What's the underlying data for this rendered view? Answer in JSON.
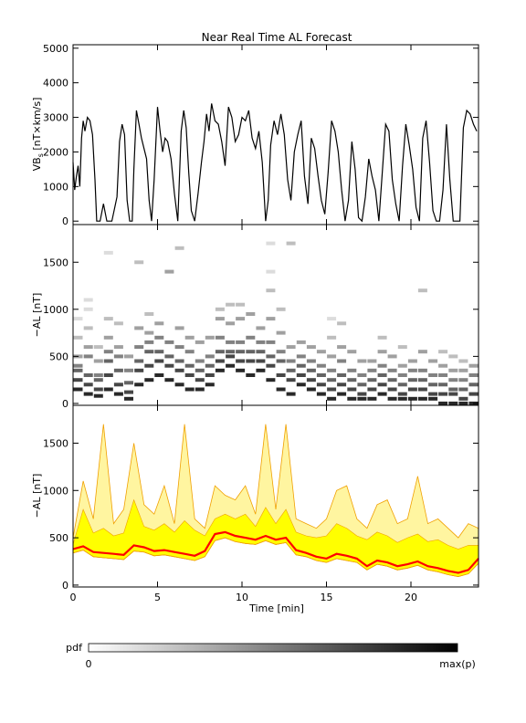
{
  "figure_title": "Near Real Time AL Forecast",
  "colorbar": {
    "label": "pdf",
    "min_label": "0",
    "max_label": "max(p)",
    "colors": [
      "#ffffff",
      "#000000"
    ]
  },
  "colors": {
    "vbs_line": "#000000",
    "band_outer_fill": "#fff5a0",
    "band_inner_fill": "#ffff00",
    "band_edge": "#f0a000",
    "median_line": "#ff0000"
  },
  "chart_data": [
    {
      "type": "line",
      "panel": "top",
      "title": "Near Real Time AL Forecast",
      "xlabel": "",
      "ylabel": "VBs [nT×km/s]",
      "ylabel_main": "VB",
      "ylabel_sub": "s",
      "ylabel_rest": " [nT×km/s]",
      "xlim": [
        0,
        24
      ],
      "ylim": [
        -100,
        5100
      ],
      "yticks": [
        0,
        1000,
        2000,
        3000,
        4000,
        5000
      ],
      "ytick_labels": [
        "0",
        "1000",
        "2000",
        "3000",
        "4000",
        "5000"
      ],
      "grid": false,
      "series": [
        {
          "x": [
            0,
            0.1,
            0.2,
            0.3,
            0.4,
            0.5,
            0.6,
            0.7,
            0.85,
            1.0,
            1.15,
            1.3,
            1.4,
            1.6,
            1.8,
            2.0,
            2.3,
            2.6,
            2.75,
            2.9,
            3.05,
            3.2,
            3.35,
            3.5,
            3.6,
            3.75,
            3.9,
            4.05,
            4.2,
            4.35,
            4.5,
            4.65,
            4.8,
            5.0,
            5.15,
            5.3,
            5.45,
            5.6,
            5.8,
            6.0,
            6.2,
            6.4,
            6.55,
            6.7,
            6.85,
            7.0,
            7.2,
            7.4,
            7.6,
            7.75,
            7.9,
            8.05,
            8.2,
            8.4,
            8.6,
            8.8,
            9.0,
            9.2,
            9.4,
            9.6,
            9.8,
            10.0,
            10.2,
            10.4,
            10.6,
            10.8,
            11.0,
            11.2,
            11.4,
            11.55,
            11.7,
            11.9,
            12.1,
            12.3,
            12.5,
            12.7,
            12.9,
            13.1,
            13.3,
            13.5,
            13.7,
            13.9,
            14.1,
            14.3,
            14.5,
            14.7,
            14.9,
            15.1,
            15.3,
            15.5,
            15.7,
            15.9,
            16.1,
            16.3,
            16.5,
            16.7,
            16.9,
            17.1,
            17.3,
            17.5,
            17.7,
            17.9,
            18.1,
            18.3,
            18.5,
            18.7,
            18.9,
            19.1,
            19.3,
            19.5,
            19.7,
            19.9,
            20.1,
            20.3,
            20.5,
            20.7,
            20.9,
            21.1,
            21.3,
            21.5,
            21.7,
            21.9,
            22.1,
            22.3,
            22.5,
            22.7,
            22.9,
            23.1,
            23.3,
            23.5,
            23.7,
            23.9
          ],
          "y": [
            1700,
            900,
            1300,
            1600,
            1000,
            2400,
            2900,
            2600,
            3000,
            2900,
            2500,
            1200,
            0,
            0,
            500,
            0,
            0,
            700,
            2300,
            2800,
            2500,
            600,
            0,
            0,
            1500,
            3200,
            2800,
            2400,
            2100,
            1800,
            600,
            0,
            1200,
            3300,
            2600,
            2000,
            2400,
            2300,
            1800,
            800,
            0,
            2600,
            3200,
            2700,
            1400,
            300,
            0,
            800,
            1700,
            2300,
            3100,
            2600,
            3400,
            2900,
            2800,
            2300,
            1600,
            3300,
            3000,
            2300,
            2500,
            3000,
            2900,
            3200,
            2400,
            2100,
            2600,
            1700,
            0,
            600,
            2200,
            2900,
            2500,
            3100,
            2500,
            1200,
            600,
            2000,
            2500,
            2900,
            1300,
            500,
            2400,
            2100,
            1300,
            600,
            200,
            1400,
            2900,
            2600,
            2000,
            900,
            0,
            600,
            2300,
            1500,
            100,
            0,
            700,
            1800,
            1300,
            900,
            0,
            1400,
            2800,
            2600,
            1200,
            500,
            0,
            1600,
            2800,
            2200,
            1500,
            400,
            0,
            2400,
            2900,
            1700,
            300,
            0,
            0,
            900,
            2800,
            1200,
            0,
            0,
            0,
            2700,
            3200,
            3100,
            2800,
            2600
          ]
        }
      ]
    },
    {
      "type": "heatmap",
      "panel": "middle",
      "xlabel": "",
      "ylabel": "−AL [nT]",
      "xlim": [
        0,
        24
      ],
      "ylim": [
        -20,
        1900
      ],
      "yticks": [
        0,
        500,
        1000,
        1500
      ],
      "ytick_labels": [
        "0",
        "500",
        "1000",
        "1500"
      ],
      "grid": false,
      "columns": [
        {
          "x": 0.3,
          "values": [
            150,
            250,
            350,
            400,
            500,
            700,
            900
          ]
        },
        {
          "x": 0.9,
          "values": [
            100,
            200,
            300,
            500,
            600,
            800,
            1000,
            1100
          ]
        },
        {
          "x": 1.5,
          "values": [
            80,
            150,
            250,
            300,
            450,
            600
          ]
        },
        {
          "x": 2.1,
          "values": [
            150,
            300,
            450,
            550,
            700,
            900,
            1600
          ]
        },
        {
          "x": 2.7,
          "values": [
            100,
            200,
            350,
            500,
            600,
            850
          ]
        },
        {
          "x": 3.3,
          "values": [
            50,
            120,
            220,
            350,
            500
          ]
        },
        {
          "x": 3.9,
          "values": [
            200,
            350,
            450,
            600,
            800,
            1500
          ]
        },
        {
          "x": 4.5,
          "values": [
            250,
            400,
            550,
            650,
            750,
            950
          ]
        },
        {
          "x": 5.1,
          "values": [
            300,
            450,
            550,
            700,
            850
          ]
        },
        {
          "x": 5.7,
          "values": [
            250,
            400,
            500,
            650,
            1400
          ]
        },
        {
          "x": 6.3,
          "values": [
            200,
            350,
            450,
            600,
            800,
            1650
          ]
        },
        {
          "x": 6.9,
          "values": [
            150,
            300,
            400,
            550,
            700
          ]
        },
        {
          "x": 7.5,
          "values": [
            150,
            250,
            350,
            450,
            650
          ]
        },
        {
          "x": 8.1,
          "values": [
            200,
            300,
            400,
            500,
            700
          ]
        },
        {
          "x": 8.7,
          "values": [
            350,
            450,
            550,
            700,
            900,
            1000
          ]
        },
        {
          "x": 9.3,
          "values": [
            400,
            500,
            550,
            650,
            850,
            1050
          ]
        },
        {
          "x": 9.9,
          "values": [
            350,
            450,
            550,
            650,
            900,
            1050
          ]
        },
        {
          "x": 10.5,
          "values": [
            300,
            450,
            550,
            700,
            950
          ]
        },
        {
          "x": 11.1,
          "values": [
            350,
            450,
            550,
            650,
            800
          ]
        },
        {
          "x": 11.7,
          "values": [
            250,
            400,
            500,
            650,
            900,
            1200,
            1400,
            1700
          ]
        },
        {
          "x": 12.3,
          "values": [
            150,
            300,
            450,
            550,
            750,
            1000
          ]
        },
        {
          "x": 12.9,
          "values": [
            100,
            250,
            350,
            450,
            600,
            1700
          ]
        },
        {
          "x": 13.5,
          "values": [
            200,
            300,
            400,
            500,
            650
          ]
        },
        {
          "x": 14.1,
          "values": [
            150,
            250,
            350,
            450,
            600
          ]
        },
        {
          "x": 14.7,
          "values": [
            100,
            200,
            300,
            400,
            550
          ]
        },
        {
          "x": 15.3,
          "values": [
            50,
            150,
            250,
            350,
            500,
            700,
            900
          ]
        },
        {
          "x": 15.9,
          "values": [
            100,
            200,
            300,
            450,
            600,
            850
          ]
        },
        {
          "x": 16.5,
          "values": [
            50,
            150,
            250,
            350,
            550
          ]
        },
        {
          "x": 17.1,
          "values": [
            50,
            100,
            200,
            300,
            450
          ]
        },
        {
          "x": 17.7,
          "values": [
            50,
            150,
            250,
            350,
            450
          ]
        },
        {
          "x": 18.3,
          "values": [
            100,
            200,
            300,
            400,
            550,
            700
          ]
        },
        {
          "x": 18.9,
          "values": [
            50,
            150,
            250,
            350,
            500
          ]
        },
        {
          "x": 19.5,
          "values": [
            50,
            100,
            200,
            300,
            400,
            600
          ]
        },
        {
          "x": 20.1,
          "values": [
            50,
            150,
            250,
            350,
            450
          ]
        },
        {
          "x": 20.7,
          "values": [
            50,
            150,
            250,
            350,
            550,
            1200
          ]
        },
        {
          "x": 21.3,
          "values": [
            50,
            100,
            200,
            300,
            450
          ]
        },
        {
          "x": 21.9,
          "values": [
            0,
            100,
            200,
            300,
            400,
            550
          ]
        },
        {
          "x": 22.5,
          "values": [
            0,
            100,
            150,
            250,
            350,
            500
          ]
        },
        {
          "x": 23.1,
          "values": [
            0,
            50,
            150,
            250,
            350,
            450
          ]
        },
        {
          "x": 23.7,
          "values": [
            0,
            100,
            200,
            300,
            400
          ]
        }
      ]
    },
    {
      "type": "area",
      "panel": "bottom",
      "xlabel": "Time [min]",
      "ylabel": "−AL [nT]",
      "xlim": [
        0,
        24
      ],
      "ylim": [
        -20,
        1900
      ],
      "xticks": [
        0,
        5,
        10,
        15,
        20
      ],
      "xtick_labels": [
        "0",
        "5",
        "10",
        "15",
        "20"
      ],
      "yticks": [
        0,
        500,
        1000,
        1500
      ],
      "ytick_labels": [
        "0",
        "500",
        "1000",
        "1500"
      ],
      "grid": false,
      "x": [
        0,
        0.6,
        1.2,
        1.8,
        2.4,
        3.0,
        3.6,
        4.2,
        4.8,
        5.4,
        6.0,
        6.6,
        7.2,
        7.8,
        8.4,
        9.0,
        9.6,
        10.2,
        10.8,
        11.4,
        12.0,
        12.6,
        13.2,
        13.8,
        14.4,
        15.0,
        15.6,
        16.2,
        16.8,
        17.4,
        18.0,
        18.6,
        19.2,
        19.8,
        20.4,
        21.0,
        21.6,
        22.2,
        22.8,
        23.4,
        24.0
      ],
      "series": [
        {
          "role": "upper envelope",
          "values": [
            500,
            1100,
            700,
            1700,
            650,
            800,
            1500,
            850,
            750,
            1050,
            650,
            1700,
            700,
            600,
            1050,
            950,
            900,
            1050,
            750,
            1700,
            800,
            1700,
            700,
            650,
            600,
            700,
            1000,
            1050,
            700,
            600,
            850,
            900,
            650,
            700,
            1150,
            650,
            700,
            600,
            500,
            650,
            600
          ]
        },
        {
          "role": "inner band upper",
          "values": [
            430,
            800,
            550,
            600,
            520,
            550,
            900,
            620,
            580,
            650,
            560,
            680,
            580,
            520,
            700,
            750,
            700,
            750,
            620,
            820,
            650,
            800,
            560,
            520,
            500,
            520,
            650,
            600,
            520,
            480,
            560,
            520,
            450,
            500,
            540,
            460,
            480,
            420,
            380,
            420,
            420
          ]
        },
        {
          "role": "median",
          "values": [
            380,
            410,
            350,
            340,
            330,
            320,
            420,
            400,
            360,
            370,
            350,
            330,
            310,
            360,
            540,
            560,
            520,
            500,
            480,
            520,
            480,
            500,
            370,
            340,
            300,
            280,
            330,
            310,
            280,
            200,
            260,
            240,
            200,
            220,
            250,
            200,
            180,
            150,
            130,
            160,
            280
          ]
        },
        {
          "role": "lower envelope",
          "values": [
            340,
            370,
            300,
            290,
            280,
            270,
            360,
            350,
            310,
            320,
            300,
            280,
            260,
            300,
            470,
            500,
            460,
            440,
            430,
            470,
            430,
            450,
            320,
            300,
            260,
            240,
            280,
            260,
            240,
            160,
            220,
            200,
            160,
            180,
            210,
            160,
            140,
            110,
            90,
            120,
            230
          ]
        }
      ]
    }
  ]
}
